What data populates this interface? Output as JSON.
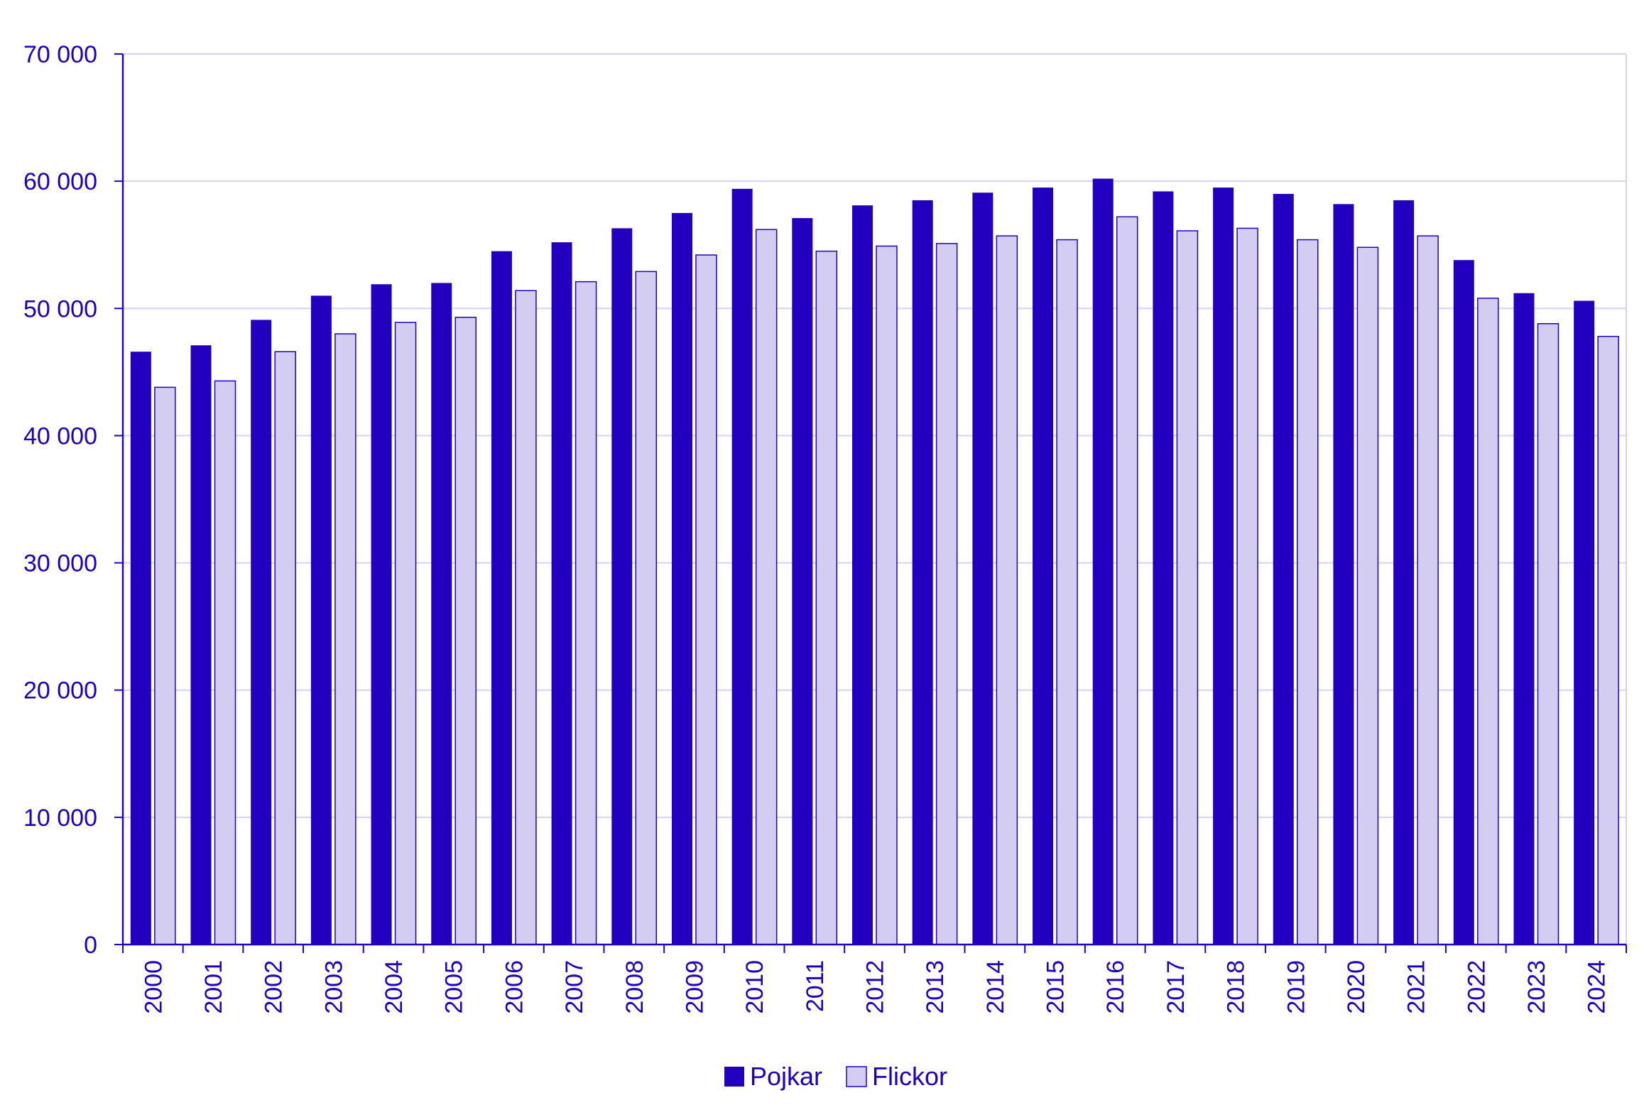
{
  "chart_data": {
    "type": "bar",
    "title": "",
    "xlabel": "",
    "ylabel": "",
    "ylim": [
      0,
      70000
    ],
    "yticks": [
      0,
      10000,
      20000,
      30000,
      40000,
      50000,
      60000,
      70000
    ],
    "ytick_labels": [
      "0",
      "10 000",
      "20 000",
      "30 000",
      "40 000",
      "50 000",
      "60 000",
      "70 000"
    ],
    "grid": true,
    "legend_position": "bottom-center",
    "categories": [
      "2000",
      "2001",
      "2002",
      "2003",
      "2004",
      "2005",
      "2006",
      "2007",
      "2008",
      "2009",
      "2010",
      "2011",
      "2012",
      "2013",
      "2014",
      "2015",
      "2016",
      "2017",
      "2018",
      "2019",
      "2020",
      "2021",
      "2022",
      "2023",
      "2024"
    ],
    "series": [
      {
        "name": "Pojkar",
        "color": "#2300c0",
        "values": [
          46600,
          47100,
          49100,
          51000,
          51900,
          52000,
          54500,
          55200,
          56300,
          57500,
          59400,
          57100,
          58100,
          58500,
          59100,
          59500,
          60200,
          59200,
          59500,
          59000,
          58200,
          58500,
          53800,
          51200,
          50600
        ]
      },
      {
        "name": "Flickor",
        "color": "#d3cdf1",
        "values": [
          43800,
          44300,
          46600,
          48000,
          48900,
          49300,
          51400,
          52100,
          52900,
          54200,
          56200,
          54500,
          54900,
          55100,
          55700,
          55400,
          57200,
          56100,
          56300,
          55400,
          54800,
          55700,
          50800,
          48800,
          47800
        ]
      }
    ]
  },
  "colors": {
    "axis": "#2300c0",
    "grid": "#d6d3f0",
    "text": "#1d00b8",
    "bar_outline": "#2300c0"
  }
}
